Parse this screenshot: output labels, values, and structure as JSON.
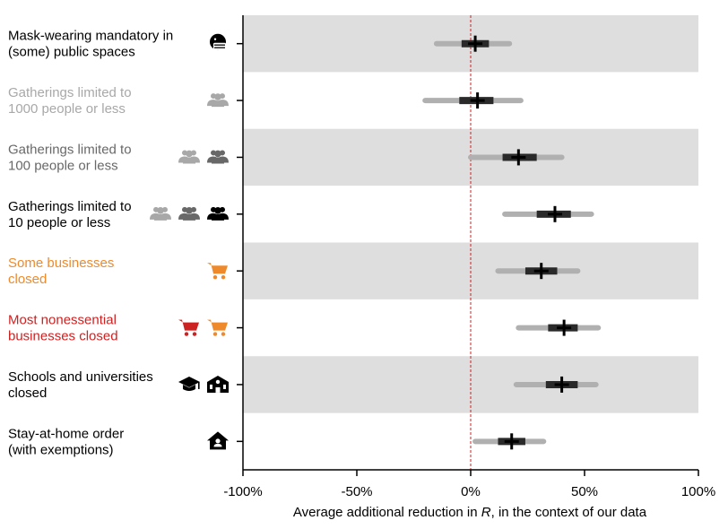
{
  "chart_data": {
    "type": "interval",
    "xlabel": "Average additional reduction in R, in the context of our data",
    "xlabel_parts": [
      "Average additional reduction in ",
      "R",
      ", in the context of our data"
    ],
    "xlim": [
      -100,
      100
    ],
    "xticks": [
      -100,
      -50,
      0,
      50,
      100
    ],
    "xtick_labels": [
      "-100%",
      "-50%",
      "0%",
      "50%",
      "100%"
    ],
    "reference_line": 0,
    "colors": {
      "band": "#dedede",
      "outer_interval": "#b0b0b0",
      "inner_interval": "#2a2a2a",
      "median_marker": "#000000",
      "reference_line": "#cc2222",
      "black": "#000000",
      "gray": "#a8a8a8",
      "dark_gray": "#686868",
      "orange": "#ee8a2b",
      "red": "#cc2222"
    },
    "rows": [
      {
        "label": [
          "Mask-wearing mandatory in",
          "(some) public spaces"
        ],
        "color": "#000000",
        "median": 2,
        "inner": [
          -4,
          8
        ],
        "outer": [
          -15,
          17
        ],
        "icons": [
          {
            "name": "mask-icon",
            "color": "#000000"
          }
        ]
      },
      {
        "label": [
          "Gatherings limited to",
          "1000 people or less"
        ],
        "color": "#a8a8a8",
        "median": 3,
        "inner": [
          -5,
          10
        ],
        "outer": [
          -20,
          22
        ],
        "icons": [
          {
            "name": "group-icon",
            "color": "#a8a8a8"
          }
        ]
      },
      {
        "label": [
          "Gatherings limited to",
          "100 people or less"
        ],
        "color": "#686868",
        "median": 21,
        "inner": [
          14,
          29
        ],
        "outer": [
          0,
          40
        ],
        "icons": [
          {
            "name": "group-icon",
            "color": "#a8a8a8"
          },
          {
            "name": "group-icon",
            "color": "#686868"
          }
        ]
      },
      {
        "label": [
          "Gatherings limited to",
          "10 people or less"
        ],
        "color": "#000000",
        "median": 37,
        "inner": [
          29,
          44
        ],
        "outer": [
          15,
          53
        ],
        "icons": [
          {
            "name": "group-icon",
            "color": "#a8a8a8"
          },
          {
            "name": "group-icon",
            "color": "#686868"
          },
          {
            "name": "group-icon",
            "color": "#000000"
          }
        ]
      },
      {
        "label": [
          "Some businesses",
          "closed"
        ],
        "color": "#ee8a2b",
        "median": 31,
        "inner": [
          24,
          38
        ],
        "outer": [
          12,
          47
        ],
        "icons": [
          {
            "name": "cart-icon",
            "color": "#ee8a2b"
          }
        ]
      },
      {
        "label": [
          "Most nonessential",
          "businesses closed"
        ],
        "color": "#cc2222",
        "median": 41,
        "inner": [
          34,
          47
        ],
        "outer": [
          21,
          56
        ],
        "icons": [
          {
            "name": "cart-icon",
            "color": "#cc2222"
          },
          {
            "name": "cart-icon",
            "color": "#ee8a2b"
          }
        ]
      },
      {
        "label": [
          "Schools and universities",
          "closed"
        ],
        "color": "#000000",
        "median": 40,
        "inner": [
          33,
          47
        ],
        "outer": [
          20,
          55
        ],
        "icons": [
          {
            "name": "graduation-cap-icon",
            "color": "#000000"
          },
          {
            "name": "school-icon",
            "color": "#000000"
          }
        ]
      },
      {
        "label": [
          "Stay-at-home order",
          "(with exemptions)"
        ],
        "color": "#000000",
        "median": 18,
        "inner": [
          12,
          24
        ],
        "outer": [
          2,
          32
        ],
        "icons": [
          {
            "name": "home-person-icon",
            "color": "#000000"
          }
        ]
      }
    ]
  }
}
